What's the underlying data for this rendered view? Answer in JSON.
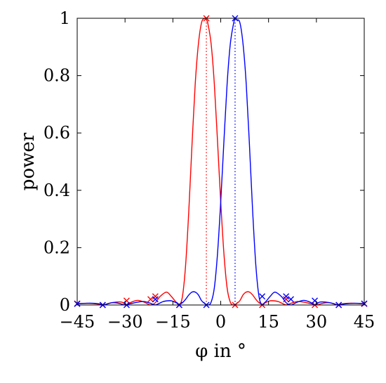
{
  "chart_data": {
    "type": "line",
    "xlabel": "φ in °",
    "ylabel": "power",
    "xlim": [
      -45,
      45
    ],
    "ylim": [
      0,
      1
    ],
    "xticks": [
      -45,
      -30,
      -15,
      0,
      15,
      30,
      45
    ],
    "xtick_labels": [
      "−45",
      "−30",
      "−15",
      "0",
      "15",
      "30",
      "45"
    ],
    "yticks": [
      0,
      0.2,
      0.4,
      0.6,
      0.8,
      1
    ],
    "ytick_labels": [
      "0",
      "0.2",
      "0.4",
      "0.6",
      "0.8",
      "1"
    ],
    "grid": false,
    "colors": {
      "red": "#ff0000",
      "blue": "#0000ff"
    },
    "series": [
      {
        "color": "red",
        "curve": {
          "x": [
            -45,
            -42,
            -39,
            -37,
            -35,
            -33,
            -31,
            -29.5,
            -28,
            -26,
            -24,
            -22,
            -20.5,
            -19,
            -17,
            -15.5,
            -14,
            -13,
            -12,
            -11,
            -10,
            -9,
            -8,
            -7,
            -6,
            -5,
            -4.5,
            -4,
            -3,
            -2,
            -1,
            0,
            1,
            2,
            3,
            4,
            5,
            6,
            7,
            8,
            9,
            10,
            11,
            12,
            13,
            14,
            15,
            16,
            18,
            20.5,
            22,
            24,
            26,
            28.5,
            30,
            32,
            34,
            36.8,
            38,
            40,
            42,
            45
          ],
          "y": [
            0.005,
            0.006,
            0.004,
            0.0,
            0.006,
            0.01,
            0.01,
            0.0,
            0.01,
            0.016,
            0.01,
            0.0,
            0.008,
            0.03,
            0.045,
            0.03,
            0.01,
            0.0,
            0.03,
            0.14,
            0.33,
            0.56,
            0.77,
            0.91,
            0.985,
            1.0,
            0.995,
            0.98,
            0.91,
            0.77,
            0.57,
            0.36,
            0.18,
            0.06,
            0.01,
            0.0,
            0.005,
            0.015,
            0.035,
            0.045,
            0.045,
            0.035,
            0.02,
            0.008,
            0.003,
            0.008,
            0.013,
            0.015,
            0.012,
            0.0,
            0.006,
            0.012,
            0.01,
            0.004,
            0.0,
            0.006,
            0.008,
            0.0,
            0.004,
            0.006,
            0.006,
            0.004
          ]
        },
        "markers": {
          "x": [
            -45,
            -37,
            -29.5,
            -22,
            -20.5,
            -13,
            -4.5,
            4.5,
            13,
            20.5,
            29.5,
            37,
            45
          ],
          "y": [
            0.005,
            0.0,
            0.015,
            0.02,
            0.03,
            0.0,
            1.0,
            0.0,
            0.0,
            0.02,
            0.0,
            0.0,
            0.004
          ]
        },
        "dotted_line": {
          "x": -4.5,
          "y": [
            0,
            1
          ]
        }
      },
      {
        "color": "blue",
        "curve": {
          "x": [
            -45,
            -42,
            -40,
            -38,
            -36.8,
            -34,
            -32,
            -30,
            -28.5,
            -26,
            -24,
            -22,
            -20.5,
            -18,
            -16,
            -15,
            -14,
            -13,
            -12,
            -11,
            -10,
            -9,
            -8,
            -7,
            -6,
            -5,
            -4,
            -3,
            -2,
            -1,
            0,
            1,
            2,
            3,
            4,
            4.5,
            5,
            6,
            7,
            8,
            9,
            10,
            11,
            12,
            13,
            14,
            15.5,
            17,
            19,
            20.5,
            22,
            24,
            26,
            28,
            29.5,
            31,
            33,
            35,
            37,
            39,
            42,
            45
          ],
          "y": [
            0.004,
            0.006,
            0.006,
            0.004,
            0.0,
            0.008,
            0.006,
            0.0,
            0.004,
            0.01,
            0.012,
            0.006,
            0.0,
            0.012,
            0.015,
            0.013,
            0.008,
            0.003,
            0.008,
            0.02,
            0.035,
            0.045,
            0.045,
            0.035,
            0.015,
            0.005,
            0.0,
            0.01,
            0.06,
            0.18,
            0.36,
            0.57,
            0.77,
            0.91,
            0.98,
            1.0,
            0.995,
            0.985,
            0.91,
            0.77,
            0.56,
            0.33,
            0.14,
            0.03,
            0.0,
            0.01,
            0.03,
            0.045,
            0.03,
            0.008,
            0.0,
            0.01,
            0.016,
            0.01,
            0.0,
            0.01,
            0.01,
            0.006,
            0.0,
            0.004,
            0.006,
            0.005
          ]
        },
        "markers": {
          "x": [
            -45,
            -37,
            -29.5,
            -20.5,
            -13,
            -4.5,
            4.5,
            13,
            20.5,
            22,
            29.5,
            37,
            45
          ],
          "y": [
            0.004,
            0.0,
            0.0,
            0.02,
            0.0,
            0.0,
            1.0,
            0.03,
            0.03,
            0.02,
            0.015,
            0.0,
            0.005
          ]
        },
        "dotted_line": {
          "x": 4.5,
          "y": [
            0,
            1
          ]
        }
      }
    ]
  }
}
